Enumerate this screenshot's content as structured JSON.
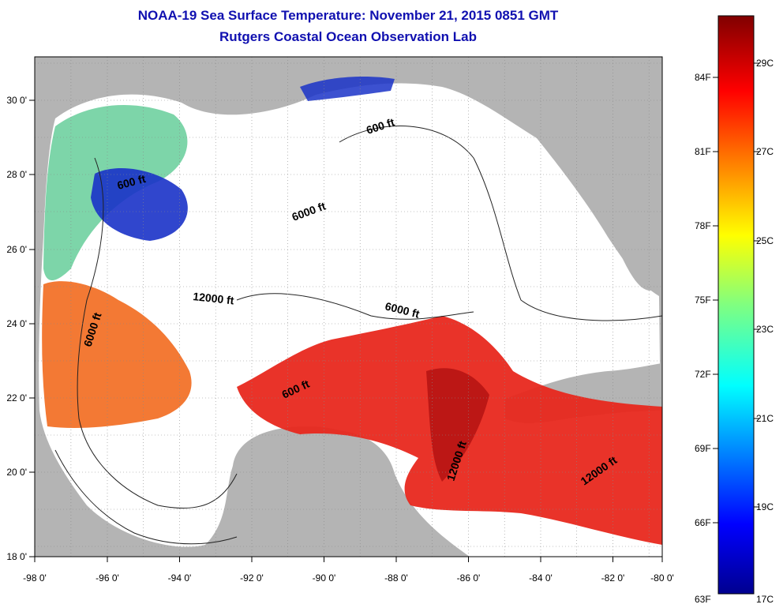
{
  "title": "NOAA-19 Sea Surface Temperature:  November 21, 2015 0851 GMT",
  "subtitle": "Rutgers Coastal Ocean Observation Lab",
  "x_ticks": [
    "-98 0'",
    "-96 0'",
    "-94 0'",
    "-92 0'",
    "-90 0'",
    "-88 0'",
    "-86 0'",
    "-84 0'",
    "-82 0'",
    "-80 0'"
  ],
  "y_ticks": [
    "30 0'",
    "28 0'",
    "26 0'",
    "24 0'",
    "22 0'",
    "20 0'",
    "18 0'"
  ],
  "colorbar_f": [
    "84F",
    "81F",
    "78F",
    "75F",
    "72F",
    "69F",
    "66F",
    "63F"
  ],
  "colorbar_c": [
    "29C",
    "27C",
    "25C",
    "23C",
    "21C",
    "19C",
    "17C"
  ],
  "contour_labels": [
    "600 ft",
    "600 ft",
    "6000 ft",
    "12000 ft",
    "6000 ft",
    "6000 ft",
    "600 ft",
    "12000 ft",
    "12000 ft"
  ],
  "colors": {
    "land": "#b4b4b4",
    "ocean_nodata": "#ffffff",
    "title": "#1010b0",
    "warm": "#e8281e",
    "cool": "#1a32c8"
  }
}
